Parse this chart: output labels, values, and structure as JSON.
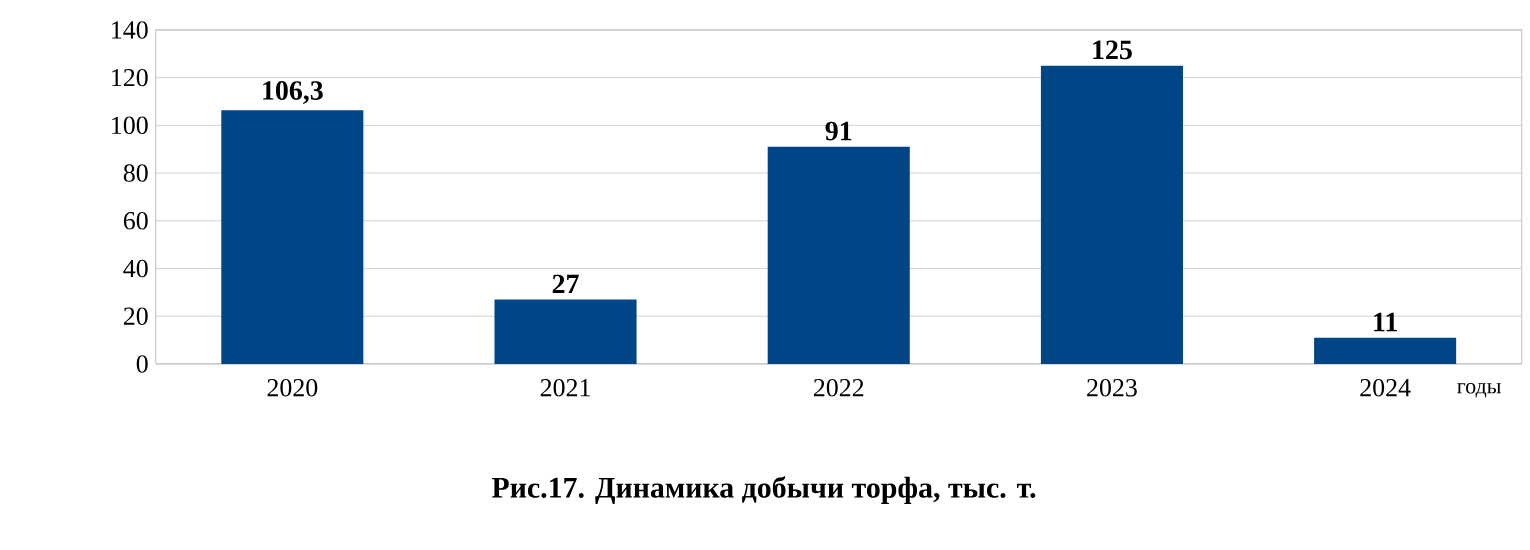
{
  "chart_data": {
    "type": "bar",
    "title": "Рис.17. Динамика добычи торфа, тыс. т.",
    "xlabel": "годы",
    "categories": [
      "2020",
      "2021",
      "2022",
      "2023",
      "2024"
    ],
    "values": [
      106.3,
      27,
      91,
      125,
      11
    ],
    "value_labels": [
      "106,3",
      "27",
      "91",
      "125",
      "11"
    ],
    "color": "#004586",
    "ylim": [
      0,
      140
    ],
    "yticks": [
      0,
      20,
      40,
      60,
      80,
      100,
      120,
      140
    ],
    "grid": "y"
  }
}
